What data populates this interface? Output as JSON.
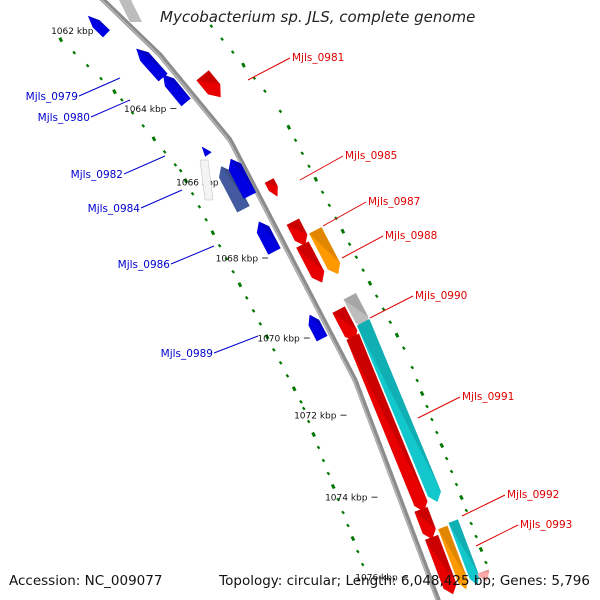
{
  "title": "Mycobacterium sp. JLS, complete genome",
  "footer": {
    "accession": "Accession: NC_009077",
    "topology": "Topology: circular; Length: 6,048,425 bp; Genes: 5,796"
  },
  "axis_unit": "kbp",
  "ticks": [
    {
      "kb": 1062,
      "label": "1062 kbp"
    },
    {
      "kb": 1064,
      "label": "1064 kbp"
    },
    {
      "kb": 1066,
      "label": "1066 kbp"
    },
    {
      "kb": 1068,
      "label": "1068 kbp"
    },
    {
      "kb": 1070,
      "label": "1070 kbp"
    },
    {
      "kb": 1072,
      "label": "1072 kbp"
    },
    {
      "kb": 1074,
      "label": "1074 kbp"
    },
    {
      "kb": 1076,
      "label": "1076 kbp"
    }
  ],
  "colors": {
    "backbone": "#8c8c8c",
    "forward_cds": "#e80000",
    "reverse_cds": "#0000e0",
    "gray_feature": "#bdbdbd",
    "orange_feature": "#ff9900",
    "cyan_feature": "#13c8cc",
    "pink_feature": "#ffaaaa",
    "gc_dots": "#007700",
    "forward_label": "#dd0000",
    "reverse_label": "#0000cc"
  },
  "reverse_genes": [
    {
      "label": "Mjls_0979"
    },
    {
      "label": "Mjls_0980"
    },
    {
      "label": "Mjls_0982"
    },
    {
      "label": "Mjls_0984"
    },
    {
      "label": "Mjls_0986"
    },
    {
      "label": "Mjls_0989"
    }
  ],
  "forward_genes": [
    {
      "label": "Mjls_0981"
    },
    {
      "label": "Mjls_0985"
    },
    {
      "label": "Mjls_0987"
    },
    {
      "label": "Mjls_0988"
    },
    {
      "label": "Mjls_0990"
    },
    {
      "label": "Mjls_0991"
    },
    {
      "label": "Mjls_0992"
    },
    {
      "label": "Mjls_0993"
    }
  ]
}
